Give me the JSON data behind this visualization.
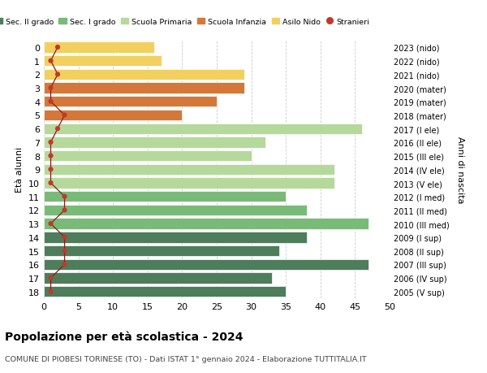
{
  "ages": [
    18,
    17,
    16,
    15,
    14,
    13,
    12,
    11,
    10,
    9,
    8,
    7,
    6,
    5,
    4,
    3,
    2,
    1,
    0
  ],
  "right_labels": [
    "2005 (V sup)",
    "2006 (IV sup)",
    "2007 (III sup)",
    "2008 (II sup)",
    "2009 (I sup)",
    "2010 (III med)",
    "2011 (II med)",
    "2012 (I med)",
    "2013 (V ele)",
    "2014 (IV ele)",
    "2015 (III ele)",
    "2016 (II ele)",
    "2017 (I ele)",
    "2018 (mater)",
    "2019 (mater)",
    "2020 (mater)",
    "2021 (nido)",
    "2022 (nido)",
    "2023 (nido)"
  ],
  "bar_values": [
    35,
    33,
    47,
    34,
    38,
    47,
    38,
    35,
    42,
    42,
    30,
    32,
    46,
    20,
    25,
    29,
    29,
    17,
    16
  ],
  "bar_colors": [
    "#4e7d5b",
    "#4e7d5b",
    "#4e7d5b",
    "#4e7d5b",
    "#4e7d5b",
    "#7aba78",
    "#7aba78",
    "#7aba78",
    "#b5d99b",
    "#b5d99b",
    "#b5d99b",
    "#b5d99b",
    "#b5d99b",
    "#d4783a",
    "#d4783a",
    "#d4783a",
    "#f2d060",
    "#f2d060",
    "#f2d060"
  ],
  "stranieri_values": [
    1,
    1,
    3,
    3,
    3,
    1,
    3,
    3,
    1,
    1,
    1,
    1,
    2,
    3,
    1,
    1,
    2,
    1,
    2
  ],
  "legend_labels": [
    "Sec. II grado",
    "Sec. I grado",
    "Scuola Primaria",
    "Scuola Infanzia",
    "Asilo Nido",
    "Stranieri"
  ],
  "legend_colors": [
    "#4e7d5b",
    "#7aba78",
    "#b5d99b",
    "#d4783a",
    "#f2d060",
    "#c0392b"
  ],
  "title": "Popolazione per età scolastica - 2024",
  "subtitle": "COMUNE DI PIOBESI TORINESE (TO) - Dati ISTAT 1° gennaio 2024 - Elaborazione TUTTITALIA.IT",
  "ylabel_left": "Età alunni",
  "ylabel_right": "Anni di nascita",
  "xlim": [
    0,
    50
  ],
  "xticks": [
    0,
    5,
    10,
    15,
    20,
    25,
    30,
    35,
    40,
    45,
    50
  ],
  "background_color": "#ffffff",
  "grid_color": "#cccccc"
}
